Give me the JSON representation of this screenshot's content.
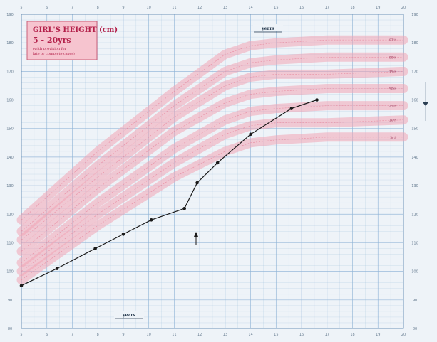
{
  "chart_data": {
    "type": "line",
    "title": "GIRL'S HEIGHT (cm)",
    "subtitle": "5 - 20yrs",
    "note_lines": [
      "(with provision for",
      "late or complete cases)"
    ],
    "top_label": "years",
    "bottom_label": "years",
    "xlim": [
      5,
      20
    ],
    "ylim": [
      80,
      190
    ],
    "x_ticks": [
      "5",
      "6",
      "7",
      "8",
      "9",
      "10",
      "11",
      "12",
      "13",
      "14",
      "15",
      "16",
      "17",
      "18",
      "19",
      "20"
    ],
    "y_ticks": [
      "80",
      "90",
      "100",
      "110",
      "120",
      "130",
      "140",
      "150",
      "160",
      "170",
      "180",
      "190"
    ],
    "centile_labels": [
      "97th",
      "90th",
      "75th",
      "50th",
      "25th",
      "10th",
      "3rd"
    ],
    "centiles": [
      {
        "x": [
          5,
          8,
          11,
          13,
          14,
          15,
          17,
          20
        ],
        "y": [
          118,
          142,
          163,
          176,
          179,
          180,
          181,
          181
        ]
      },
      {
        "x": [
          5,
          8,
          11,
          13,
          14,
          15,
          17,
          20
        ],
        "y": [
          114,
          137,
          158,
          170,
          173,
          174,
          175,
          175
        ]
      },
      {
        "x": [
          5,
          8,
          11,
          13,
          14,
          15,
          17,
          20
        ],
        "y": [
          111,
          133,
          154,
          165,
          168,
          169,
          169,
          170
        ]
      },
      {
        "x": [
          5,
          8,
          11,
          13,
          14,
          15,
          17,
          20
        ],
        "y": [
          107,
          129,
          149,
          159,
          162,
          163,
          164,
          164
        ]
      },
      {
        "x": [
          5,
          8,
          11,
          13,
          14,
          15,
          17,
          20
        ],
        "y": [
          103,
          124,
          143,
          153,
          156,
          157,
          158,
          158
        ]
      },
      {
        "x": [
          5,
          8,
          11,
          13,
          14,
          15,
          17,
          20
        ],
        "y": [
          100,
          120,
          138,
          148,
          151,
          152,
          152,
          153
        ]
      },
      {
        "x": [
          5,
          8,
          11,
          13,
          14,
          15,
          17,
          20
        ],
        "y": [
          97,
          116,
          133,
          142,
          145,
          146,
          147,
          147
        ]
      }
    ],
    "series": [
      {
        "x": [
          5,
          6.4,
          7.9,
          9,
          10.1,
          11.4,
          11.9,
          12.7,
          14,
          15.6,
          16.6
        ],
        "y": [
          95,
          101,
          108,
          113,
          118,
          122,
          131,
          138,
          148,
          157,
          160
        ]
      }
    ],
    "annotation": "arrow at 11.4 years",
    "colors": {
      "band": "#f2a4b4",
      "grid": "#8fb4d6",
      "line": "#1a1a1a",
      "title": "#b3204a"
    }
  }
}
